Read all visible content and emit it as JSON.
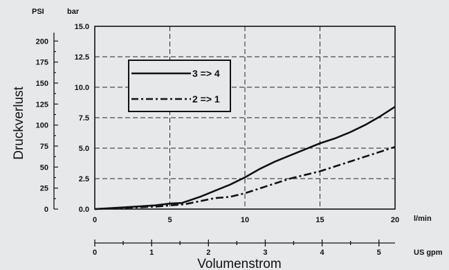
{
  "chart_data": {
    "type": "line",
    "title": "",
    "ylabel": "Druckverlust",
    "xlabel": "Volumenstrom",
    "x_unit_primary": "l/min",
    "x_unit_secondary": "US gpm",
    "y_unit_bar": "bar",
    "y_unit_psi": "PSI",
    "xlim": [
      0,
      20
    ],
    "ylim": [
      0,
      15
    ],
    "x_ticks": [
      "0",
      "5",
      "10",
      "15",
      "20"
    ],
    "y_ticks_bar": [
      "0.0",
      "2.5",
      "5.0",
      "7.5",
      "10.0",
      "12.5",
      "15.0"
    ],
    "y_ticks_psi": [
      "0",
      "25",
      "50",
      "75",
      "100",
      "125",
      "150",
      "175",
      "200"
    ],
    "gpm_ticks": [
      "0",
      "1",
      "2",
      "3",
      "4",
      "5"
    ],
    "grid": true,
    "legend_position": "top-left",
    "series": [
      {
        "name": "3 => 4",
        "style": "solid",
        "x": [
          0,
          2,
          4,
          5,
          5.8,
          7,
          8,
          9,
          10,
          11,
          12,
          13,
          14,
          15,
          16,
          17,
          18,
          19,
          20
        ],
        "y": [
          0,
          0.15,
          0.3,
          0.45,
          0.5,
          1.0,
          1.5,
          2.0,
          2.6,
          3.3,
          3.9,
          4.4,
          4.9,
          5.4,
          5.8,
          6.3,
          6.9,
          7.6,
          8.4
        ]
      },
      {
        "name": "2 => 1",
        "style": "dash-dot",
        "x": [
          0,
          2,
          4,
          6,
          8,
          9,
          10,
          11,
          12,
          13,
          14,
          15,
          16,
          17,
          18,
          19,
          20
        ],
        "y": [
          0,
          0.1,
          0.2,
          0.4,
          0.9,
          1.0,
          1.3,
          1.7,
          2.1,
          2.5,
          2.8,
          3.1,
          3.5,
          3.9,
          4.3,
          4.7,
          5.1
        ]
      }
    ]
  }
}
